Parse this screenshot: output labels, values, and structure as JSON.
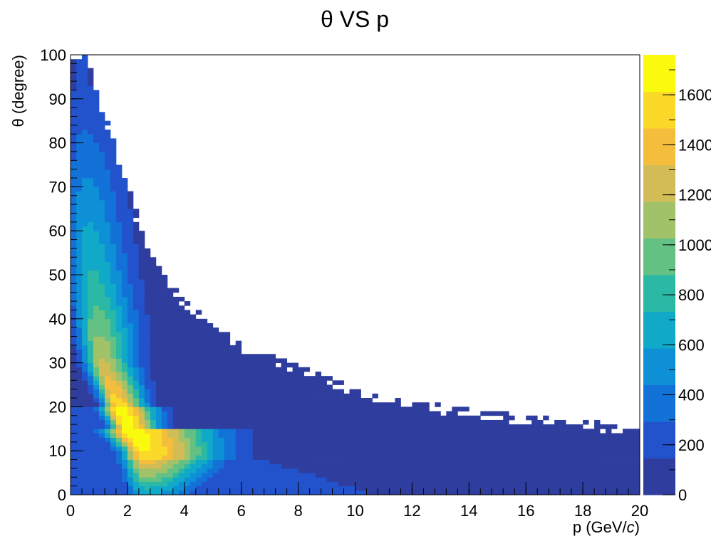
{
  "chart_data": {
    "type": "heatmap",
    "title": "θ VS p",
    "xlabel_main": "p (GeV/",
    "xlabel_italic": "c",
    "xlabel_end": ")",
    "ylabel": "θ (degree)",
    "xlim": [
      0,
      20
    ],
    "ylim": [
      0,
      100
    ],
    "bins": {
      "nx": 100,
      "ny": 100
    },
    "x_ticks": [
      "0",
      "2",
      "4",
      "6",
      "8",
      "10",
      "12",
      "14",
      "16",
      "18",
      "20"
    ],
    "y_ticks": [
      "0",
      "10",
      "20",
      "30",
      "40",
      "50",
      "60",
      "70",
      "80",
      "90",
      "100"
    ],
    "z_range": [
      0,
      1760
    ],
    "z_ticks": [
      "0",
      "200",
      "400",
      "600",
      "800",
      "1000",
      "1200",
      "1400",
      "1600"
    ],
    "colormap": "parula",
    "colors": [
      "#2f3e9e",
      "#2253cc",
      "#1272d8",
      "#0e90d6",
      "#10aac8",
      "#2bb9a6",
      "#63c184",
      "#a2c26a",
      "#d1bc55",
      "#f4bd3c",
      "#fbd928",
      "#f9fa0e"
    ],
    "ridge": {
      "description_points": [
        {
          "theta": 100,
          "p": 0.3
        },
        {
          "theta": 60,
          "p": 0.6
        },
        {
          "theta": 40,
          "p": 0.9
        },
        {
          "theta": 30,
          "p": 1.1
        },
        {
          "theta": 20,
          "p": 1.7
        },
        {
          "theta": 14,
          "p": 2.1
        },
        {
          "theta": 10,
          "p": 2.6
        }
      ],
      "peak": {
        "p": 1.7,
        "theta": 17,
        "count": 1750
      }
    },
    "outer_boundary_theta_vs_p": [
      [
        0.5,
        100
      ],
      [
        1.0,
        90
      ],
      [
        1.5,
        80
      ],
      [
        2.0,
        70
      ],
      [
        2.5,
        60
      ],
      [
        3.0,
        52
      ],
      [
        4.0,
        44
      ],
      [
        5.0,
        38
      ],
      [
        6.0,
        34
      ],
      [
        8.0,
        29
      ],
      [
        10.0,
        24
      ],
      [
        12.0,
        21
      ],
      [
        14.0,
        19
      ],
      [
        16.0,
        17.5
      ],
      [
        18.0,
        16.5
      ],
      [
        20.0,
        14.5
      ]
    ]
  }
}
